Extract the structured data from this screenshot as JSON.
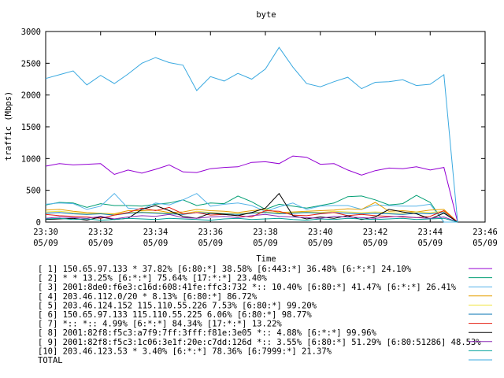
{
  "chart_data": {
    "type": "line",
    "title": "byte",
    "xlabel": "Time",
    "ylabel": "traffic (Mbps)",
    "ylim": [
      0,
      3000
    ],
    "xlim": [
      0,
      16
    ],
    "grid": false,
    "legend_position": "bottom",
    "y_ticks": [
      {
        "value": 0,
        "label": "0"
      },
      {
        "value": 500,
        "label": "500"
      },
      {
        "value": 1000,
        "label": "1000"
      },
      {
        "value": 1500,
        "label": "1500"
      },
      {
        "value": 2000,
        "label": "2000"
      },
      {
        "value": 2500,
        "label": "2500"
      },
      {
        "value": 3000,
        "label": "3000"
      }
    ],
    "x_ticks": [
      {
        "value": 0,
        "time": "23:30",
        "date": "05/09"
      },
      {
        "value": 2,
        "time": "23:32",
        "date": "05/09"
      },
      {
        "value": 4,
        "time": "23:34",
        "date": "05/09"
      },
      {
        "value": 6,
        "time": "23:36",
        "date": "05/09"
      },
      {
        "value": 8,
        "time": "23:38",
        "date": "05/09"
      },
      {
        "value": 10,
        "time": "23:40",
        "date": "05/09"
      },
      {
        "value": 12,
        "time": "23:42",
        "date": "05/09"
      },
      {
        "value": 14,
        "time": "23:44",
        "date": "05/09"
      },
      {
        "value": 16,
        "time": "23:46",
        "date": "05/09"
      }
    ],
    "x": [
      0,
      0.5,
      1,
      1.5,
      2,
      2.5,
      3,
      3.5,
      4,
      4.5,
      5,
      5.5,
      6,
      6.5,
      7,
      7.5,
      8,
      8.5,
      9,
      9.5,
      10,
      10.5,
      11,
      11.5,
      12,
      12.5,
      13,
      13.5,
      14,
      14.5,
      15
    ],
    "series": [
      {
        "name": "[ 1] 150.65.97.133 * 37.82%  [6:80:*] 38.58% [6:443:*] 36.48% [6:*:*] 24.10%",
        "color": "#9400d3",
        "values": [
          880,
          920,
          900,
          910,
          920,
          750,
          820,
          770,
          830,
          900,
          790,
          780,
          840,
          860,
          870,
          940,
          950,
          920,
          1040,
          1020,
          910,
          920,
          820,
          740,
          810,
          850,
          840,
          870,
          820,
          860,
          0
        ]
      },
      {
        "name": "[ 2] * * 13.25%  [6:*:*] 75.64% [17:*:*] 23.40%",
        "color": "#009e73",
        "values": [
          270,
          310,
          300,
          230,
          290,
          260,
          260,
          250,
          280,
          300,
          350,
          260,
          300,
          290,
          410,
          320,
          200,
          280,
          250,
          220,
          260,
          300,
          400,
          410,
          350,
          270,
          290,
          420,
          310,
          0,
          0
        ]
      },
      {
        "name": "[ 3] 2001:8de0:f6e3:c16d:608:41fe:ffc3:732 *:: 10.40%  [6:80:*] 41.47% [6:*:*] 26.41%",
        "color": "#56b4e9",
        "values": [
          280,
          300,
          290,
          200,
          250,
          450,
          220,
          200,
          300,
          270,
          350,
          450,
          250,
          280,
          300,
          260,
          170,
          240,
          300,
          200,
          250,
          260,
          260,
          200,
          270,
          260,
          250,
          250,
          280,
          0,
          0
        ]
      },
      {
        "name": "[ 4] 203.46.112.0/20 * 8.13%  [6:80:*] 86.72%",
        "color": "#e69f00",
        "values": [
          190,
          200,
          170,
          150,
          140,
          130,
          180,
          180,
          190,
          150,
          160,
          200,
          180,
          170,
          150,
          180,
          200,
          150,
          160,
          170,
          180,
          190,
          210,
          200,
          310,
          170,
          180,
          160,
          190,
          200,
          0
        ]
      },
      {
        "name": "[ 5] 203.46.124.152 115.110.55.226 7.53%  [6:80:*] 99.20%",
        "color": "#f0e442",
        "values": [
          160,
          170,
          150,
          130,
          140,
          120,
          150,
          160,
          150,
          140,
          130,
          170,
          150,
          140,
          130,
          150,
          160,
          140,
          150,
          160,
          150,
          170,
          160,
          150,
          160,
          150,
          140,
          160,
          150,
          170,
          0
        ]
      },
      {
        "name": "[ 6] 150.65.97.133 115.110.55.225 6.06%  [6:80:*] 98.77%",
        "color": "#0072b2",
        "values": [
          140,
          150,
          130,
          120,
          130,
          110,
          140,
          150,
          140,
          130,
          120,
          150,
          140,
          130,
          120,
          140,
          150,
          130,
          140,
          150,
          140,
          150,
          140,
          130,
          140,
          130,
          120,
          140,
          130,
          150,
          0
        ]
      },
      {
        "name": "[ 7] *:: *:: 4.99%  [6:*:*] 84.34% [17:*:*] 13.22%",
        "color": "#e51e10",
        "values": [
          120,
          100,
          90,
          80,
          60,
          110,
          150,
          220,
          180,
          230,
          130,
          150,
          110,
          120,
          100,
          80,
          180,
          170,
          110,
          100,
          130,
          150,
          100,
          120,
          100,
          90,
          80,
          70,
          90,
          180,
          0
        ]
      },
      {
        "name": "[ 8] 2001:82f8:f5c3:a7f9:7ff:3fff:f81e:3e05 *:: 4.88%  [6:*:*] 99.96%",
        "color": "#000000",
        "values": [
          40,
          50,
          60,
          30,
          80,
          40,
          60,
          200,
          260,
          180,
          90,
          60,
          140,
          120,
          100,
          150,
          220,
          450,
          100,
          50,
          80,
          60,
          100,
          40,
          80,
          200,
          160,
          130,
          50,
          140,
          0
        ]
      },
      {
        "name": "[ 9] 2001:82f8:f5c3:1c06:3e1f:20e:c7dd:126d *:: 3.55%  [6:80:*] 51.29% [6:80:51286] 48.53%",
        "color": "#8b2bb5",
        "values": [
          60,
          80,
          70,
          60,
          90,
          50,
          80,
          100,
          90,
          120,
          70,
          60,
          80,
          90,
          70,
          100,
          120,
          90,
          80,
          70,
          60,
          90,
          80,
          70,
          60,
          80,
          90,
          70,
          60,
          80,
          0
        ]
      },
      {
        "name": "[10] 203.46.123.53 * 3.40%  [6:*:*] 78.36% [6:7999:*] 21.37%",
        "color": "#00a09a",
        "values": [
          50,
          60,
          40,
          50,
          30,
          40,
          60,
          50,
          40,
          60,
          50,
          40,
          30,
          50,
          60,
          40,
          50,
          60,
          40,
          30,
          50,
          40,
          60,
          50,
          40,
          50,
          60,
          40,
          50,
          60,
          0
        ]
      },
      {
        "name": "TOTAL",
        "color": "#3aa9e0",
        "values": [
          2260,
          2320,
          2380,
          2160,
          2310,
          2180,
          2330,
          2500,
          2590,
          2510,
          2470,
          2070,
          2290,
          2220,
          2340,
          2250,
          2410,
          2750,
          2440,
          2180,
          2130,
          2210,
          2280,
          2100,
          2200,
          2210,
          2240,
          2150,
          2170,
          2320,
          0
        ]
      }
    ]
  }
}
